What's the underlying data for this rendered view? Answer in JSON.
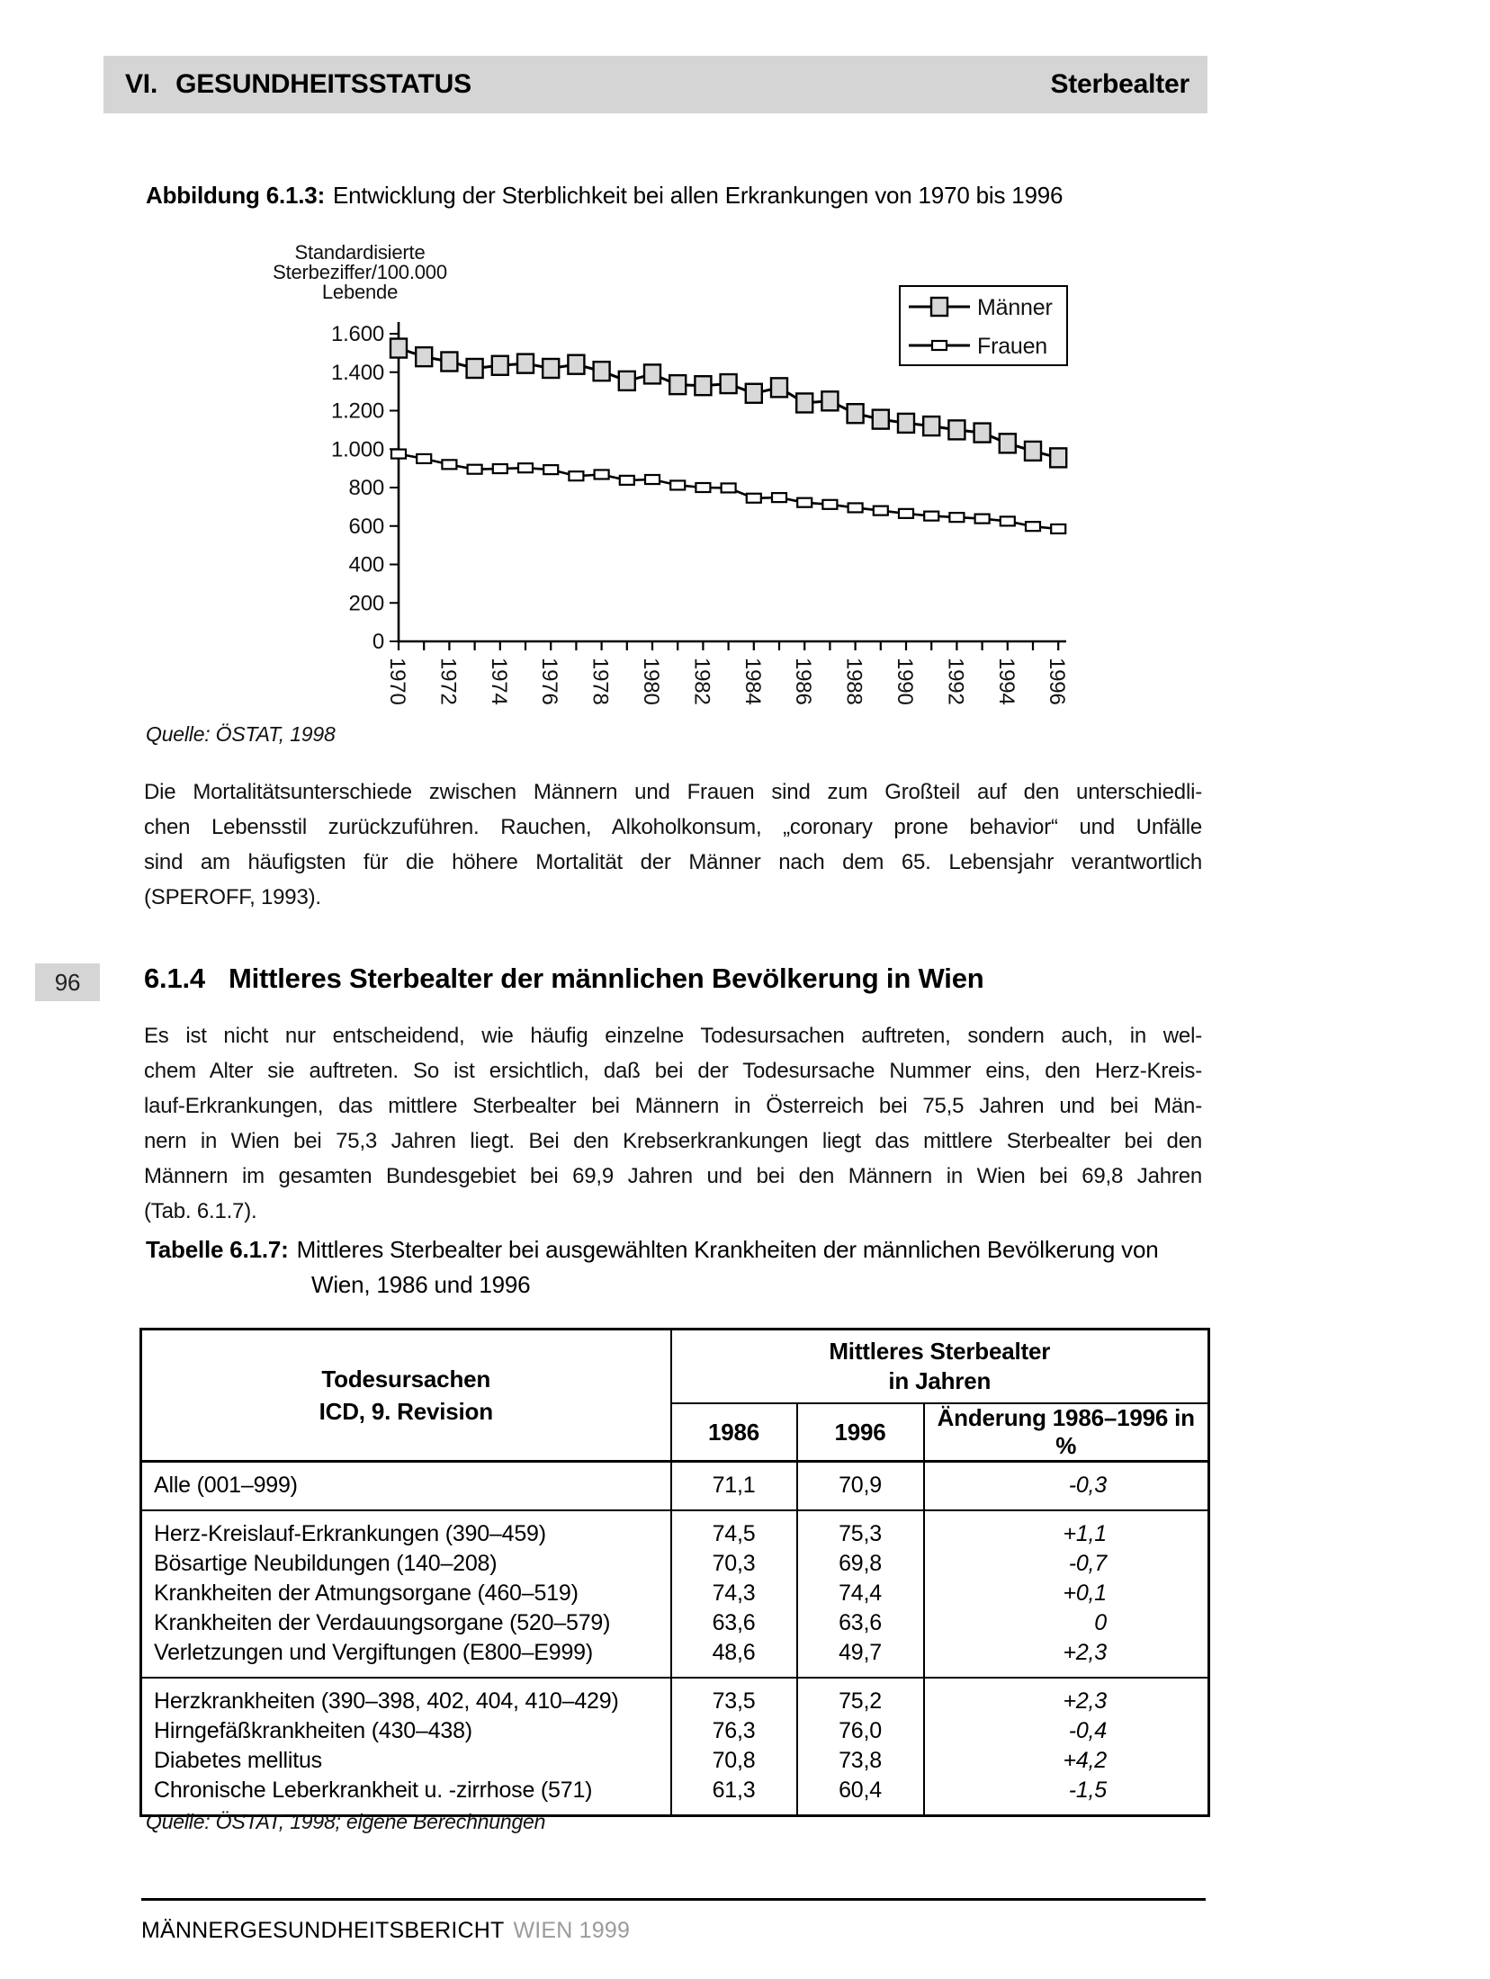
{
  "header": {
    "chapter_number": "VI.",
    "chapter_title": "GESUNDHEITSSTATUS",
    "running_head": "Sterbealter"
  },
  "page_number": "96",
  "figure": {
    "caption_label": "Abbildung 6.1.3:",
    "caption_text": "Entwicklung der Sterblichkeit bei allen Erkrankungen von 1970 bis 1996",
    "source": "Quelle: ÖSTAT, 1998"
  },
  "chart_data": {
    "type": "line",
    "title": "",
    "y_axis_title_lines": [
      "Standardisierte",
      "Sterbeziffer/100.000",
      "Lebende"
    ],
    "ylim": [
      0,
      1600
    ],
    "y_ticks": [
      0,
      200,
      400,
      600,
      800,
      1000,
      1200,
      1400,
      1600
    ],
    "y_tick_labels": [
      "0",
      "200",
      "400",
      "600",
      "800",
      "1.000",
      "1.200",
      "1.400",
      "1.600"
    ],
    "x": [
      1970,
      1971,
      1972,
      1973,
      1974,
      1975,
      1976,
      1977,
      1978,
      1979,
      1980,
      1981,
      1982,
      1983,
      1984,
      1985,
      1986,
      1987,
      1988,
      1989,
      1990,
      1991,
      1992,
      1993,
      1994,
      1995,
      1996
    ],
    "x_tick_labels": [
      "1970",
      "1972",
      "1974",
      "1976",
      "1978",
      "1980",
      "1982",
      "1984",
      "1986",
      "1988",
      "1990",
      "1992",
      "1994",
      "1996"
    ],
    "legend_position": "top-right",
    "grid": false,
    "series": [
      {
        "name": "Männer",
        "marker": "large-gray-square",
        "values": [
          1525,
          1480,
          1455,
          1420,
          1435,
          1445,
          1420,
          1440,
          1405,
          1355,
          1390,
          1335,
          1330,
          1340,
          1290,
          1320,
          1240,
          1250,
          1185,
          1155,
          1135,
          1120,
          1100,
          1085,
          1030,
          990,
          955
        ]
      },
      {
        "name": "Frauen",
        "marker": "small-white-rect",
        "values": [
          975,
          950,
          920,
          895,
          898,
          902,
          893,
          860,
          868,
          838,
          842,
          812,
          800,
          798,
          745,
          748,
          722,
          712,
          695,
          680,
          665,
          652,
          645,
          638,
          625,
          598,
          585
        ]
      }
    ]
  },
  "paragraph1_lines": [
    "Die Mortalitätsunterschiede zwischen Männern und Frauen sind zum Großteil auf den unterschiedli-",
    "chen Lebensstil zurückzuführen. Rauchen, Alkoholkonsum, „coronary prone behavior“ und Unfälle",
    "sind am häufigsten für die höhere Mortalität der Männer nach dem 65. Lebensjahr verantwortlich",
    "(SPEROFF, 1993)."
  ],
  "section": {
    "number": "6.1.4",
    "title": "Mittleres Sterbealter der männlichen Bevölkerung in Wien"
  },
  "paragraph2_lines": [
    "Es ist nicht nur entscheidend, wie häufig einzelne Todesursachen auftreten, sondern auch, in wel-",
    "chem Alter sie auftreten. So ist ersichtlich, daß bei der Todesursache Nummer eins, den Herz-Kreis-",
    "lauf-Erkrankungen, das mittlere Sterbealter bei Männern in Österreich bei 75,5 Jahren und bei Män-",
    "nern in Wien bei 75,3 Jahren liegt. Bei den Krebserkrankungen liegt das mittlere Sterbealter bei den",
    "Männern im gesamten Bundesgebiet bei 69,9 Jahren und bei den Männern in Wien bei 69,8 Jahren",
    "(Tab. 6.1.7)."
  ],
  "table": {
    "caption_label": "Tabelle 6.1.7:",
    "caption_line1": "Mittleres Sterbealter bei ausgewählten Krankheiten der männlichen Bevölkerung von",
    "caption_line2": "Wien, 1986 und 1996",
    "col1_header_line1": "Todesursachen",
    "col1_header_line2": "ICD, 9. Revision",
    "span_header_line1": "Mittleres Sterbealter",
    "span_header_line2": "in Jahren",
    "col_headers": [
      "1986",
      "1996",
      "Änderung 1986–1996 in %"
    ],
    "groups": [
      {
        "rows": [
          {
            "label": "Alle (001–999)",
            "v1986": "71,1",
            "v1996": "70,9",
            "change": "-0,3"
          }
        ]
      },
      {
        "rows": [
          {
            "label": "Herz-Kreislauf-Erkrankungen (390–459)",
            "v1986": "74,5",
            "v1996": "75,3",
            "change": "+1,1"
          },
          {
            "label": "Bösartige Neubildungen (140–208)",
            "v1986": "70,3",
            "v1996": "69,8",
            "change": "-0,7"
          },
          {
            "label": "Krankheiten der Atmungsorgane (460–519)",
            "v1986": "74,3",
            "v1996": "74,4",
            "change": "+0,1"
          },
          {
            "label": "Krankheiten der Verdauungsorgane (520–579)",
            "v1986": "63,6",
            "v1996": "63,6",
            "change": "0"
          },
          {
            "label": "Verletzungen und Vergiftungen (E800–E999)",
            "v1986": "48,6",
            "v1996": "49,7",
            "change": "+2,3"
          }
        ]
      },
      {
        "rows": [
          {
            "label": "Herzkrankheiten (390–398, 402, 404, 410–429)",
            "v1986": "73,5",
            "v1996": "75,2",
            "change": "+2,3"
          },
          {
            "label": "Hirngefäßkrankheiten (430–438)",
            "v1986": "76,3",
            "v1996": "76,0",
            "change": "-0,4"
          },
          {
            "label": "Diabetes mellitus",
            "v1986": "70,8",
            "v1996": "73,8",
            "change": "+4,2"
          },
          {
            "label": "Chronische Leberkrankheit u. -zirrhose (571)",
            "v1986": "61,3",
            "v1996": "60,4",
            "change": "-1,5"
          }
        ]
      }
    ],
    "source": "Quelle: ÖSTAT, 1998; eigene Berechnungen"
  },
  "footer": {
    "title": "MÄNNERGESUNDHEITSBERICHT",
    "subtitle": "WIEN 1999"
  },
  "colors": {
    "header_bar": "#d5d5d5",
    "marker_fill": "#d8d8d8",
    "footer_sub": "#9b9b9b"
  }
}
